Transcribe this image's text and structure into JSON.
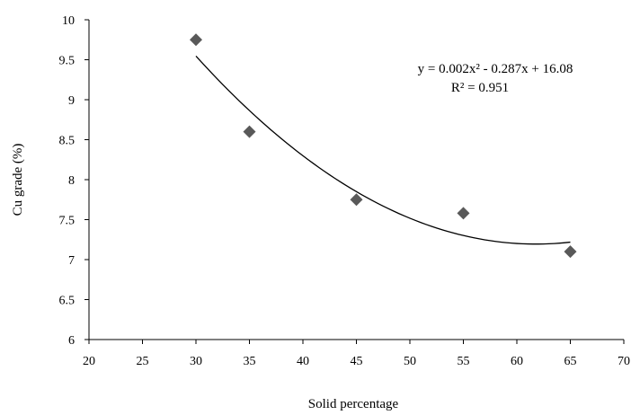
{
  "chart_data": {
    "type": "scatter",
    "title": "",
    "xlabel": "Solid percentage",
    "ylabel": "Cu grade (%)",
    "xlim": [
      20,
      70
    ],
    "ylim": [
      6,
      10
    ],
    "x_ticks": [
      20,
      25,
      30,
      35,
      40,
      45,
      50,
      55,
      60,
      65,
      70
    ],
    "y_ticks": [
      6,
      6.5,
      7,
      7.5,
      8,
      8.5,
      9,
      9.5,
      10
    ],
    "grid": false,
    "legend": "none",
    "marker": "diamond",
    "series": [
      {
        "x": [
          30,
          35,
          45,
          55,
          65
        ],
        "y": [
          9.75,
          8.6,
          7.75,
          7.58,
          7.1
        ],
        "color": "#595959"
      }
    ],
    "trendline": {
      "type": "polynomial",
      "order": 2,
      "x_range": [
        30,
        65
      ],
      "equation": "y = 0.002x² - 0.287x + 16.08",
      "r_squared": "R² = 0.951",
      "color": "#000000"
    },
    "axis_color": "#000000"
  }
}
